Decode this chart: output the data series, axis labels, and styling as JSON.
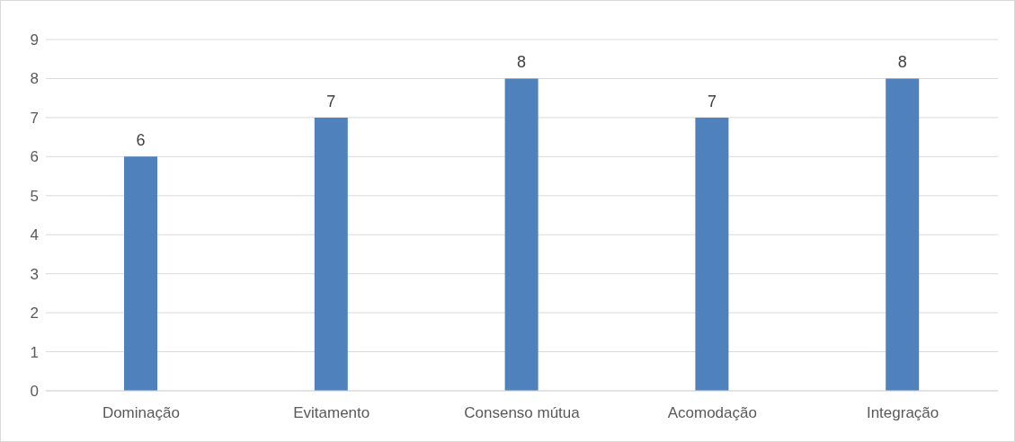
{
  "chart_data": {
    "type": "bar",
    "categories": [
      "Dominação",
      "Evitamento",
      "Consenso mútua",
      "Acomodação",
      "Integração"
    ],
    "values": [
      6,
      7,
      8,
      7,
      8
    ],
    "color": "#4f81bd",
    "ylim": [
      0,
      9
    ],
    "yticks": [
      0,
      1,
      2,
      3,
      4,
      5,
      6,
      7,
      8,
      9
    ],
    "grid": "y",
    "data_labels": true
  }
}
